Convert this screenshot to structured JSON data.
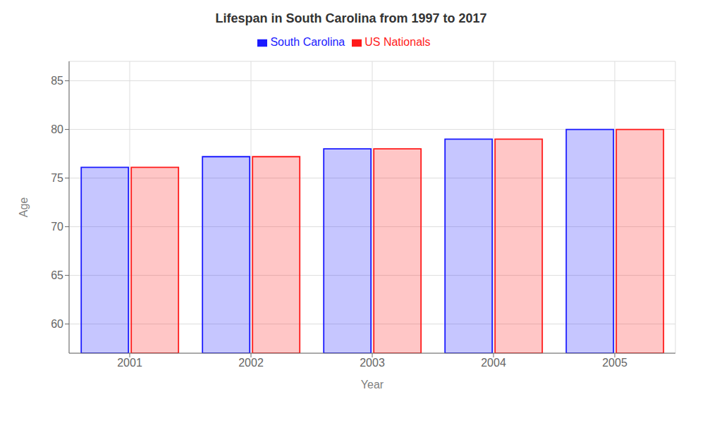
{
  "chart_data": {
    "type": "bar",
    "title": "Lifespan in South Carolina from 1997 to 2017",
    "xlabel": "Year",
    "ylabel": "Age",
    "categories": [
      "2001",
      "2002",
      "2003",
      "2004",
      "2005"
    ],
    "series": [
      {
        "name": "South Carolina",
        "color": "#1a1aff",
        "values": [
          76.1,
          77.2,
          78.0,
          79.0,
          80.0
        ]
      },
      {
        "name": "US Nationals",
        "color": "#ff1a1a",
        "values": [
          76.1,
          77.2,
          78.0,
          79.0,
          80.0
        ]
      }
    ],
    "ylim": [
      57,
      87
    ],
    "yticks": [
      60,
      65,
      70,
      75,
      80,
      85
    ],
    "grid": true,
    "legend": "top"
  }
}
